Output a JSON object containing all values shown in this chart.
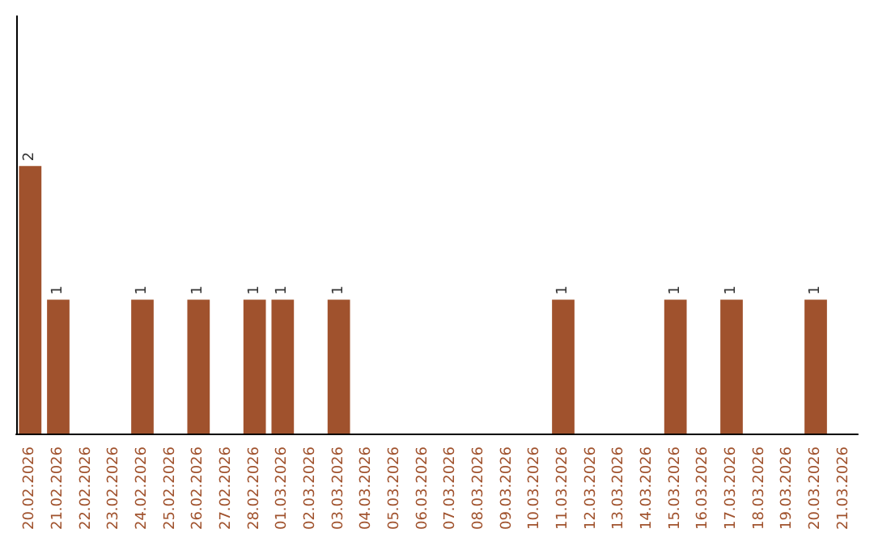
{
  "chart_data": {
    "type": "bar",
    "categories": [
      "20.02.2026",
      "21.02.2026",
      "22.02.2026",
      "23.02.2026",
      "24.02.2026",
      "25.02.2026",
      "26.02.2026",
      "27.02.2026",
      "28.02.2026",
      "01.03.2026",
      "02.03.2026",
      "03.03.2026",
      "04.03.2026",
      "05.03.2026",
      "06.03.2026",
      "07.03.2026",
      "08.03.2026",
      "09.03.2026",
      "10.03.2026",
      "11.03.2026",
      "12.03.2026",
      "13.03.2026",
      "14.03.2026",
      "15.03.2026",
      "16.03.2026",
      "17.03.2026",
      "18.03.2026",
      "19.03.2026",
      "20.03.2026",
      "21.03.2026"
    ],
    "values": [
      2,
      1,
      0,
      0,
      1,
      0,
      1,
      0,
      1,
      1,
      0,
      1,
      0,
      0,
      0,
      0,
      0,
      0,
      0,
      1,
      0,
      0,
      0,
      1,
      0,
      1,
      0,
      0,
      1,
      0
    ],
    "value_labels": [
      "2",
      "1",
      null,
      null,
      "1",
      null,
      "1",
      null,
      "1",
      "1",
      null,
      "1",
      null,
      null,
      null,
      null,
      null,
      null,
      null,
      "1",
      null,
      null,
      null,
      "1",
      null,
      "1",
      null,
      null,
      "1",
      null
    ],
    "color": "#a0522d"
  }
}
